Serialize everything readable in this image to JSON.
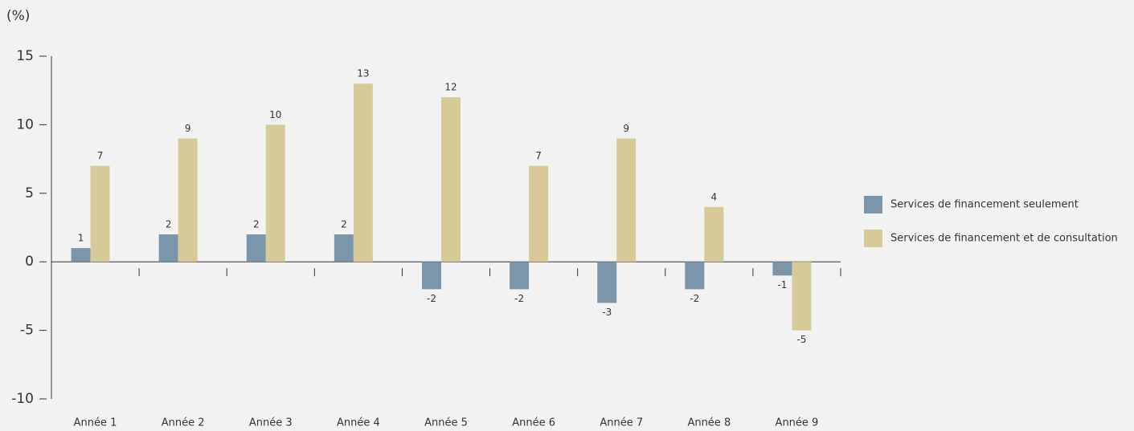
{
  "chart_data": {
    "type": "bar",
    "y_label": "(%)",
    "categories": [
      "Année 1",
      "Année 2",
      "Année 3",
      "Année 4",
      "Année 5",
      "Année 6",
      "Année 7",
      "Année 8",
      "Année 9"
    ],
    "series": [
      {
        "name": "Services de financement seulement",
        "color": "#7b96aa",
        "values": [
          1,
          2,
          2,
          2,
          -2,
          -2,
          -3,
          -2,
          -1
        ]
      },
      {
        "name": "Services de financement et de consultation",
        "color": "#d6cb98",
        "values": [
          7,
          9,
          10,
          13,
          12,
          7,
          9,
          4,
          -5
        ]
      }
    ],
    "ylim": [
      -10,
      15
    ],
    "yticks": [
      -10,
      -5,
      0,
      5,
      10,
      15
    ],
    "legend": "right"
  }
}
